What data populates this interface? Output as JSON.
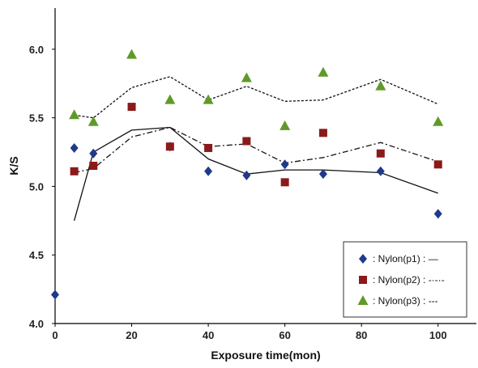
{
  "chart_data": {
    "type": "scatter",
    "title": "",
    "xlabel": "Exposure time(mon)",
    "ylabel": "K/S",
    "xlim": [
      0,
      110
    ],
    "ylim": [
      4.0,
      6.3
    ],
    "x_ticks": [
      0,
      20,
      40,
      60,
      80,
      100
    ],
    "y_ticks": [
      4.0,
      4.5,
      5.0,
      5.5,
      6.0
    ],
    "x_tick_labels": [
      "0",
      "20",
      "40",
      "60",
      "80",
      "100"
    ],
    "y_tick_labels": [
      "4.0",
      "4.5",
      "5.0",
      "5.5",
      "6.0"
    ],
    "grid": false,
    "legend_position": "bottom-right",
    "series": [
      {
        "name": "Nylon(p1)",
        "legend_label": ": Nylon(p1) : —",
        "marker": "diamond",
        "color": "#1f3a8a",
        "line_style": "solid",
        "points": [
          [
            0,
            4.21
          ],
          [
            5,
            5.28
          ],
          [
            10,
            5.24
          ],
          [
            30,
            5.29
          ],
          [
            40,
            5.11
          ],
          [
            50,
            5.08
          ],
          [
            60,
            5.16
          ],
          [
            70,
            5.09
          ],
          [
            85,
            5.11
          ],
          [
            100,
            4.8
          ]
        ],
        "trend": [
          [
            5,
            4.75
          ],
          [
            10,
            5.25
          ],
          [
            20,
            5.41
          ],
          [
            30,
            5.43
          ],
          [
            40,
            5.2
          ],
          [
            50,
            5.09
          ],
          [
            60,
            5.12
          ],
          [
            70,
            5.12
          ],
          [
            85,
            5.1
          ],
          [
            100,
            4.95
          ]
        ]
      },
      {
        "name": "Nylon(p2)",
        "legend_label": ": Nylon(p2) : -·-·-",
        "marker": "square",
        "color": "#8b1a1a",
        "line_style": "dashdot",
        "points": [
          [
            5,
            5.11
          ],
          [
            10,
            5.15
          ],
          [
            20,
            5.58
          ],
          [
            30,
            5.29
          ],
          [
            40,
            5.28
          ],
          [
            50,
            5.33
          ],
          [
            60,
            5.03
          ],
          [
            70,
            5.39
          ],
          [
            85,
            5.24
          ],
          [
            100,
            5.16
          ]
        ],
        "trend": [
          [
            5,
            5.1
          ],
          [
            10,
            5.13
          ],
          [
            20,
            5.36
          ],
          [
            30,
            5.43
          ],
          [
            40,
            5.29
          ],
          [
            50,
            5.31
          ],
          [
            60,
            5.17
          ],
          [
            70,
            5.21
          ],
          [
            85,
            5.32
          ],
          [
            100,
            5.18
          ]
        ]
      },
      {
        "name": "Nylon(p3)",
        "legend_label": ": Nylon(p3) : ---",
        "marker": "triangle",
        "color": "#5f9a28",
        "line_style": "dashed",
        "points": [
          [
            5,
            5.52
          ],
          [
            10,
            5.47
          ],
          [
            20,
            5.96
          ],
          [
            30,
            5.63
          ],
          [
            40,
            5.63
          ],
          [
            50,
            5.79
          ],
          [
            60,
            5.44
          ],
          [
            70,
            5.83
          ],
          [
            85,
            5.73
          ],
          [
            100,
            5.47
          ]
        ],
        "trend": [
          [
            5,
            5.52
          ],
          [
            10,
            5.5
          ],
          [
            20,
            5.72
          ],
          [
            30,
            5.8
          ],
          [
            40,
            5.63
          ],
          [
            50,
            5.73
          ],
          [
            60,
            5.62
          ],
          [
            70,
            5.63
          ],
          [
            85,
            5.78
          ],
          [
            100,
            5.6
          ]
        ]
      }
    ]
  }
}
